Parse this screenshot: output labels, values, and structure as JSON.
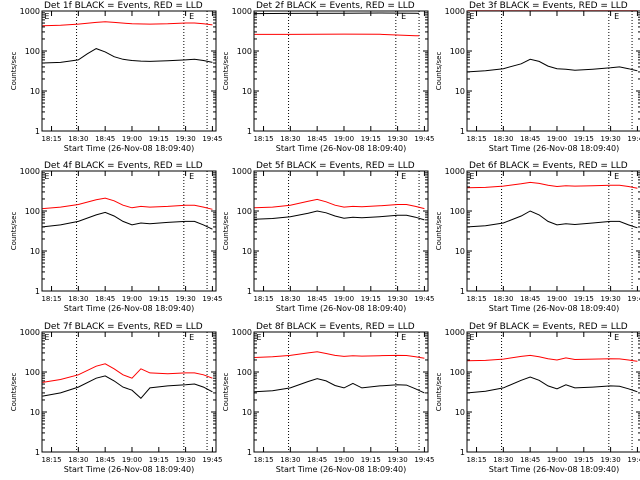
{
  "figure": {
    "colors": {
      "events": "#000000",
      "lld": "#ff0000",
      "axes": "#000000",
      "background": "#ffffff"
    }
  },
  "chart_data": [
    {
      "type": "line",
      "title": "Det 1f BLACK = Events, RED = LLD",
      "xlabel": "Start Time (26-Nov-08 18:09:40)",
      "ylabel": "Counts/sec",
      "yscale": "log",
      "ylim": [
        1,
        1000
      ],
      "xlim": [
        "18:09:40",
        "19:47:00"
      ],
      "xticks": [
        "18:15",
        "18:30",
        "18:45",
        "19:00",
        "19:15",
        "19:30",
        "19:45"
      ],
      "yticks": [
        "1",
        "10",
        "100",
        "1000"
      ],
      "dotted_lines": [
        "18:29",
        "19:29",
        "19:42"
      ],
      "markers": [
        {
          "label": "E",
          "x": "18:11"
        },
        {
          "label": "E",
          "x": "19:32"
        }
      ],
      "series": [
        {
          "name": "LLD",
          "color": "#ff0000",
          "x": [
            "18:10",
            "18:20",
            "18:30",
            "18:40",
            "18:45",
            "18:50",
            "19:00",
            "19:10",
            "19:20",
            "19:30",
            "19:35",
            "19:40",
            "19:45"
          ],
          "y": [
            430,
            440,
            470,
            520,
            540,
            520,
            480,
            470,
            480,
            500,
            500,
            480,
            450
          ]
        },
        {
          "name": "Events",
          "color": "#000000",
          "x": [
            "18:10",
            "18:20",
            "18:30",
            "18:35",
            "18:40",
            "18:45",
            "18:50",
            "18:55",
            "19:00",
            "19:05",
            "19:10",
            "19:20",
            "19:30",
            "19:35",
            "19:40",
            "19:45"
          ],
          "y": [
            50,
            52,
            60,
            85,
            115,
            95,
            72,
            62,
            58,
            56,
            55,
            57,
            60,
            62,
            58,
            52
          ]
        }
      ]
    },
    {
      "type": "line",
      "title": "Det 2f BLACK = Events, RED = LLD",
      "xlabel": "Start Time (26-Nov-08 18:09:40)",
      "ylabel": "Counts/sec",
      "yscale": "log",
      "ylim": [
        1,
        1000
      ],
      "xlim": [
        "18:09:40",
        "19:47:00"
      ],
      "xticks": [
        "18:15",
        "18:30",
        "18:45",
        "19:00",
        "19:15",
        "19:30",
        "19:45"
      ],
      "yticks": [
        "1",
        "10",
        "100",
        "1000"
      ],
      "dotted_lines": [
        "18:29",
        "19:29",
        "19:42"
      ],
      "markers": [
        {
          "label": "E",
          "x": "19:32"
        }
      ],
      "series": [
        {
          "name": "LLD",
          "color": "#ff0000",
          "x": [
            "18:10",
            "18:30",
            "19:00",
            "19:20",
            "19:40",
            "19:42"
          ],
          "y": [
            260,
            260,
            265,
            262,
            240,
            240
          ]
        },
        {
          "name": "Events",
          "color": "#000000",
          "x": [
            "18:10",
            "18:30",
            "19:00",
            "19:20",
            "19:40",
            "19:42"
          ],
          "y": [
            860,
            870,
            880,
            890,
            880,
            870
          ]
        }
      ]
    },
    {
      "type": "line",
      "title": "Det 3f BLACK = Events, RED = LLD",
      "xlabel": "Start Time (26-Nov-08 18:09:40)",
      "ylabel": "Counts/sec",
      "yscale": "log",
      "ylim": [
        1,
        1000
      ],
      "xlim": [
        "18:09:40",
        "19:47:00"
      ],
      "xticks": [
        "18:15",
        "18:30",
        "18:45",
        "19:00",
        "19:15",
        "19:30",
        "19:45"
      ],
      "yticks": [
        "1",
        "10",
        "100",
        "1000"
      ],
      "dotted_lines": [
        "18:29",
        "19:29",
        "19:42"
      ],
      "markers": [
        {
          "label": "E",
          "x": "18:11"
        },
        {
          "label": "E",
          "x": "19:32"
        }
      ],
      "series": [
        {
          "name": "LLD",
          "color": "#ff0000",
          "x": [
            "18:10",
            "18:30",
            "19:00",
            "19:30",
            "19:45"
          ],
          "y": [
            1020,
            1020,
            1020,
            1020,
            1020
          ]
        },
        {
          "name": "Events",
          "color": "#000000",
          "x": [
            "18:10",
            "18:20",
            "18:30",
            "18:40",
            "18:45",
            "18:50",
            "18:55",
            "19:00",
            "19:05",
            "19:10",
            "19:20",
            "19:30",
            "19:35",
            "19:40",
            "19:45"
          ],
          "y": [
            30,
            32,
            36,
            48,
            62,
            55,
            42,
            36,
            35,
            33,
            35,
            38,
            40,
            36,
            32
          ]
        }
      ]
    },
    {
      "type": "line",
      "title": "Det 4f BLACK = Events, RED = LLD",
      "xlabel": "Start Time (26-Nov-08 18:09:40)",
      "ylabel": "Counts/sec",
      "yscale": "log",
      "ylim": [
        1,
        1000
      ],
      "xlim": [
        "18:09:40",
        "19:47:00"
      ],
      "xticks": [
        "18:15",
        "18:30",
        "18:45",
        "19:00",
        "19:15",
        "19:30",
        "19:45"
      ],
      "yticks": [
        "1",
        "10",
        "100",
        "1000"
      ],
      "dotted_lines": [
        "18:29",
        "19:29",
        "19:42"
      ],
      "markers": [
        {
          "label": "E",
          "x": "18:11"
        },
        {
          "label": "E",
          "x": "19:32"
        }
      ],
      "series": [
        {
          "name": "LLD",
          "color": "#ff0000",
          "x": [
            "18:10",
            "18:20",
            "18:30",
            "18:40",
            "18:45",
            "18:50",
            "18:55",
            "19:00",
            "19:05",
            "19:10",
            "19:20",
            "19:30",
            "19:35",
            "19:40",
            "19:45"
          ],
          "y": [
            115,
            125,
            145,
            190,
            210,
            180,
            140,
            120,
            130,
            125,
            130,
            140,
            140,
            125,
            110
          ]
        },
        {
          "name": "Events",
          "color": "#000000",
          "x": [
            "18:10",
            "18:20",
            "18:30",
            "18:40",
            "18:45",
            "18:50",
            "18:55",
            "19:00",
            "19:05",
            "19:10",
            "19:20",
            "19:30",
            "19:35",
            "19:40",
            "19:45"
          ],
          "y": [
            40,
            45,
            55,
            80,
            92,
            75,
            55,
            45,
            50,
            48,
            52,
            55,
            55,
            45,
            35
          ]
        }
      ]
    },
    {
      "type": "line",
      "title": "Det 5f BLACK = Events, RED = LLD",
      "xlabel": "Start Time (26-Nov-08 18:09:40)",
      "ylabel": "Counts/sec",
      "yscale": "log",
      "ylim": [
        1,
        1000
      ],
      "xlim": [
        "18:09:40",
        "19:47:00"
      ],
      "xticks": [
        "18:15",
        "18:30",
        "18:45",
        "19:00",
        "19:15",
        "19:30",
        "19:45"
      ],
      "yticks": [
        "1",
        "10",
        "100",
        "1000"
      ],
      "dotted_lines": [
        "18:29",
        "19:29",
        "19:42"
      ],
      "markers": [
        {
          "label": "E",
          "x": "19:32"
        }
      ],
      "series": [
        {
          "name": "LLD",
          "color": "#ff0000",
          "x": [
            "18:10",
            "18:20",
            "18:30",
            "18:40",
            "18:45",
            "18:50",
            "18:55",
            "19:00",
            "19:05",
            "19:10",
            "19:20",
            "19:30",
            "19:35",
            "19:40",
            "19:45"
          ],
          "y": [
            120,
            125,
            140,
            175,
            195,
            170,
            140,
            125,
            130,
            128,
            135,
            145,
            145,
            130,
            115
          ]
        },
        {
          "name": "Events",
          "color": "#000000",
          "x": [
            "18:10",
            "18:20",
            "18:30",
            "18:40",
            "18:45",
            "18:50",
            "18:55",
            "19:00",
            "19:05",
            "19:10",
            "19:20",
            "19:30",
            "19:35",
            "19:40",
            "19:45"
          ],
          "y": [
            62,
            65,
            72,
            88,
            100,
            90,
            75,
            66,
            70,
            68,
            72,
            78,
            78,
            70,
            60
          ]
        }
      ]
    },
    {
      "type": "line",
      "title": "Det 6f BLACK = Events, RED = LLD",
      "xlabel": "Start Time (26-Nov-08 18:09:40)",
      "ylabel": "Counts/sec",
      "yscale": "log",
      "ylim": [
        1,
        1000
      ],
      "xlim": [
        "18:09:40",
        "19:47:00"
      ],
      "xticks": [
        "18:15",
        "18:30",
        "18:45",
        "19:00",
        "19:15",
        "19:30",
        "19:45"
      ],
      "yticks": [
        "1",
        "10",
        "100",
        "1000"
      ],
      "dotted_lines": [
        "18:29",
        "19:29",
        "19:42"
      ],
      "markers": [
        {
          "label": "E",
          "x": "18:11"
        },
        {
          "label": "E",
          "x": "19:32"
        }
      ],
      "series": [
        {
          "name": "LLD",
          "color": "#ff0000",
          "x": [
            "18:10",
            "18:20",
            "18:30",
            "18:40",
            "18:45",
            "18:50",
            "18:55",
            "19:00",
            "19:05",
            "19:10",
            "19:20",
            "19:30",
            "19:35",
            "19:40",
            "19:45"
          ],
          "y": [
            380,
            390,
            420,
            480,
            520,
            490,
            440,
            410,
            430,
            420,
            430,
            440,
            440,
            410,
            370
          ]
        },
        {
          "name": "Events",
          "color": "#000000",
          "x": [
            "18:10",
            "18:20",
            "18:30",
            "18:40",
            "18:45",
            "18:50",
            "18:55",
            "19:00",
            "19:05",
            "19:10",
            "19:20",
            "19:30",
            "19:35",
            "19:40",
            "19:45"
          ],
          "y": [
            40,
            43,
            50,
            75,
            100,
            80,
            55,
            45,
            48,
            46,
            50,
            55,
            55,
            45,
            38
          ]
        }
      ]
    },
    {
      "type": "line",
      "title": "Det 7f BLACK = Events, RED = LLD",
      "xlabel": "Start Time (26-Nov-08 18:09:40)",
      "ylabel": "Counts/sec",
      "yscale": "log",
      "ylim": [
        1,
        1000
      ],
      "xlim": [
        "18:09:40",
        "19:47:00"
      ],
      "xticks": [
        "18:15",
        "18:30",
        "18:45",
        "19:00",
        "19:15",
        "19:30",
        "19:45"
      ],
      "yticks": [
        "1",
        "10",
        "100",
        "1000"
      ],
      "dotted_lines": [
        "18:29",
        "19:29",
        "19:42"
      ],
      "markers": [
        {
          "label": "E",
          "x": "18:11"
        },
        {
          "label": "E",
          "x": "19:32"
        }
      ],
      "series": [
        {
          "name": "LLD",
          "color": "#ff0000",
          "x": [
            "18:10",
            "18:20",
            "18:30",
            "18:40",
            "18:45",
            "18:50",
            "18:55",
            "19:00",
            "19:05",
            "19:10",
            "19:20",
            "19:30",
            "19:35",
            "19:40",
            "19:45"
          ],
          "y": [
            55,
            65,
            85,
            140,
            160,
            120,
            85,
            70,
            120,
            95,
            90,
            95,
            95,
            85,
            70
          ]
        },
        {
          "name": "Events",
          "color": "#000000",
          "x": [
            "18:10",
            "18:20",
            "18:30",
            "18:40",
            "18:45",
            "18:50",
            "18:55",
            "19:00",
            "19:05",
            "19:10",
            "19:20",
            "19:30",
            "19:35",
            "19:40",
            "19:45"
          ],
          "y": [
            25,
            30,
            42,
            70,
            80,
            60,
            42,
            35,
            22,
            40,
            45,
            48,
            50,
            42,
            32
          ]
        }
      ]
    },
    {
      "type": "line",
      "title": "Det 8f BLACK = Events, RED = LLD",
      "xlabel": "Start Time (26-Nov-08 18:09:40)",
      "ylabel": "Counts/sec",
      "yscale": "log",
      "ylim": [
        1,
        1000
      ],
      "xlim": [
        "18:09:40",
        "19:47:00"
      ],
      "xticks": [
        "18:15",
        "18:30",
        "18:45",
        "19:00",
        "19:15",
        "19:30",
        "19:45"
      ],
      "yticks": [
        "1",
        "10",
        "100",
        "1000"
      ],
      "dotted_lines": [
        "18:29",
        "19:29",
        "19:42"
      ],
      "markers": [
        {
          "label": "E",
          "x": "18:11"
        },
        {
          "label": "E",
          "x": "19:32"
        }
      ],
      "series": [
        {
          "name": "LLD",
          "color": "#ff0000",
          "x": [
            "18:10",
            "18:20",
            "18:30",
            "18:40",
            "18:45",
            "18:50",
            "18:55",
            "19:00",
            "19:05",
            "19:10",
            "19:20",
            "19:30",
            "19:35",
            "19:40",
            "19:45"
          ],
          "y": [
            230,
            240,
            260,
            300,
            320,
            290,
            260,
            245,
            255,
            250,
            255,
            260,
            258,
            240,
            220
          ]
        },
        {
          "name": "Events",
          "color": "#000000",
          "x": [
            "18:10",
            "18:20",
            "18:30",
            "18:40",
            "18:45",
            "18:50",
            "18:55",
            "19:00",
            "19:05",
            "19:10",
            "19:20",
            "19:30",
            "19:35",
            "19:40",
            "19:45"
          ],
          "y": [
            32,
            34,
            40,
            58,
            68,
            60,
            46,
            40,
            52,
            40,
            45,
            48,
            47,
            38,
            30
          ]
        }
      ]
    },
    {
      "type": "line",
      "title": "Det 9f BLACK = Events, RED = LLD",
      "xlabel": "Start Time (26-Nov-08 18:09:40)",
      "ylabel": "Counts/sec",
      "yscale": "log",
      "ylim": [
        1,
        1000
      ],
      "xlim": [
        "18:09:40",
        "19:47:00"
      ],
      "xticks": [
        "18:15",
        "18:30",
        "18:45",
        "19:00",
        "19:15",
        "19:30",
        "19:45"
      ],
      "yticks": [
        "1",
        "10",
        "100",
        "1000"
      ],
      "dotted_lines": [
        "18:29",
        "19:29",
        "19:42"
      ],
      "markers": [
        {
          "label": "E",
          "x": "18:11"
        },
        {
          "label": "E",
          "x": "19:32"
        }
      ],
      "series": [
        {
          "name": "LLD",
          "color": "#ff0000",
          "x": [
            "18:10",
            "18:20",
            "18:30",
            "18:40",
            "18:45",
            "18:50",
            "18:55",
            "19:00",
            "19:05",
            "19:10",
            "19:20",
            "19:30",
            "19:35",
            "19:40",
            "19:45"
          ],
          "y": [
            190,
            195,
            210,
            245,
            260,
            240,
            215,
            200,
            225,
            205,
            210,
            215,
            212,
            200,
            185
          ]
        },
        {
          "name": "Events",
          "color": "#000000",
          "x": [
            "18:10",
            "18:20",
            "18:30",
            "18:40",
            "18:45",
            "18:50",
            "18:55",
            "19:00",
            "19:05",
            "19:10",
            "19:20",
            "19:30",
            "19:35",
            "19:40",
            "19:45"
          ],
          "y": [
            30,
            33,
            40,
            62,
            75,
            62,
            45,
            38,
            48,
            40,
            42,
            45,
            44,
            38,
            32
          ]
        }
      ]
    }
  ]
}
